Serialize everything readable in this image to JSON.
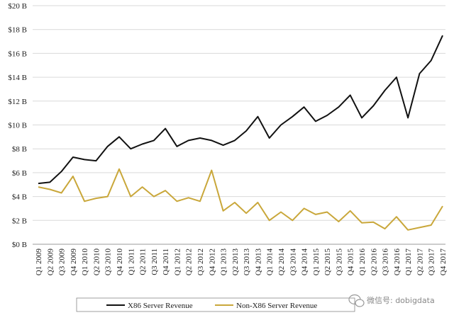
{
  "chart_data": {
    "type": "line",
    "title": "",
    "xlabel": "",
    "ylabel": "",
    "ylim": [
      0,
      20
    ],
    "y_ticks": [
      {
        "value": 0,
        "label": "$0 B"
      },
      {
        "value": 2,
        "label": "$2 B"
      },
      {
        "value": 4,
        "label": "$4 B"
      },
      {
        "value": 6,
        "label": "$6 B"
      },
      {
        "value": 8,
        "label": "$8 B"
      },
      {
        "value": 10,
        "label": "$10 B"
      },
      {
        "value": 12,
        "label": "$12 B"
      },
      {
        "value": 14,
        "label": "$14 B"
      },
      {
        "value": 16,
        "label": "$16 B"
      },
      {
        "value": 18,
        "label": "$18 B"
      },
      {
        "value": 20,
        "label": "$20 B"
      }
    ],
    "grid": "horizontal",
    "legend_position": "bottom",
    "categories": [
      "Q1 2009",
      "Q2 2009",
      "Q3 2009",
      "Q4 2009",
      "Q1 2010",
      "Q2 2010",
      "Q3 2010",
      "Q4 2010",
      "Q1 2011",
      "Q2 2011",
      "Q3 2011",
      "Q4 2011",
      "Q1 2012",
      "Q2 2012",
      "Q3 2012",
      "Q4 2012",
      "Q1 2013",
      "Q2 2013",
      "Q3 2013",
      "Q4 2013",
      "Q1 2014",
      "Q2 2014",
      "Q3 2014",
      "Q4 2014",
      "Q1 2015",
      "Q2 2015",
      "Q3 2015",
      "Q4 2015",
      "Q1 2016",
      "Q2 2016",
      "Q3 2016",
      "Q4 2016",
      "Q1 2017",
      "Q2 2017",
      "Q3 2017",
      "Q4 2017"
    ],
    "series": [
      {
        "name": "X86 Server Revenue",
        "color": "#111111",
        "values": [
          5.1,
          5.2,
          6.1,
          7.3,
          7.1,
          7.0,
          8.2,
          9.0,
          8.0,
          8.4,
          8.7,
          9.7,
          8.2,
          8.7,
          8.9,
          8.7,
          8.3,
          8.7,
          9.5,
          10.7,
          8.9,
          10.0,
          10.7,
          11.5,
          10.3,
          10.8,
          11.5,
          12.5,
          10.6,
          11.6,
          12.9,
          14.0,
          10.6,
          14.3,
          15.4,
          17.5
        ]
      },
      {
        "name": "Non-X86 Server Revenue",
        "color": "#C9A73A",
        "values": [
          4.8,
          4.6,
          4.3,
          5.7,
          3.6,
          3.85,
          4.0,
          6.3,
          4.0,
          4.8,
          4.0,
          4.5,
          3.6,
          3.9,
          3.6,
          6.2,
          2.8,
          3.5,
          2.6,
          3.5,
          2.0,
          2.7,
          2.0,
          3.0,
          2.5,
          2.7,
          1.9,
          2.8,
          1.8,
          1.85,
          1.3,
          2.3,
          1.2,
          1.4,
          1.6,
          3.2
        ]
      }
    ]
  },
  "watermark": {
    "text": "微信号: dobigdata",
    "icon": "wechat-icon"
  }
}
